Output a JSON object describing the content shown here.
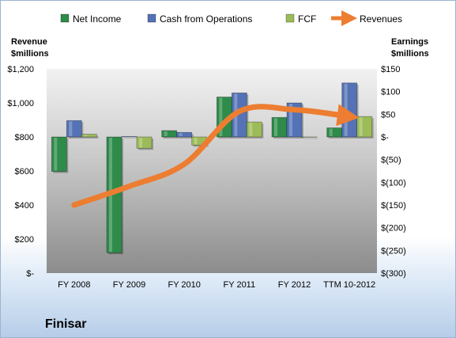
{
  "chart_data": {
    "type": "bar",
    "title": "Finisar",
    "categories": [
      "FY 2008",
      "FY 2009",
      "FY 2010",
      "FY 2011",
      "FY 2012",
      "TTM 10-2012"
    ],
    "series": [
      {
        "name": "Net Income",
        "axis": "right",
        "type": "bar",
        "color": "#2e8b4a",
        "values": [
          -76,
          -255,
          14,
          88,
          43,
          20
        ]
      },
      {
        "name": "Cash from Operations",
        "axis": "right",
        "type": "bar",
        "color": "#5472b5",
        "values": [
          36,
          1,
          10,
          97,
          75,
          119
        ]
      },
      {
        "name": "FCF",
        "axis": "right",
        "type": "bar",
        "color": "#9cbb59",
        "values": [
          6,
          -25,
          -18,
          33,
          0,
          45
        ]
      },
      {
        "name": "Revenues",
        "axis": "left",
        "type": "line",
        "color": "#ed7d31",
        "values": [
          400,
          510,
          640,
          950,
          960,
          920
        ]
      }
    ],
    "left_axis": {
      "title_line1": "Revenue",
      "title_line2": "$millions",
      "ylim": [
        0,
        1200
      ],
      "ticks": [
        0,
        200,
        400,
        600,
        800,
        1000,
        1200
      ],
      "tick_labels": [
        "$-",
        "$200",
        "$400",
        "$600",
        "$800",
        "$1,000",
        "$1,200"
      ]
    },
    "right_axis": {
      "title_line1": "Earnings",
      "title_line2": "$millions",
      "ylim": [
        -300,
        150
      ],
      "ticks": [
        150,
        100,
        50,
        0,
        -50,
        -100,
        -150,
        -200,
        -250,
        -300
      ],
      "tick_labels": [
        "$150",
        "$100",
        "$50",
        "$-",
        "$(50)",
        "$(100)",
        "$(150)",
        "$(200)",
        "$(250)",
        "$(300)"
      ]
    },
    "legend_position": "top",
    "grid": false
  }
}
